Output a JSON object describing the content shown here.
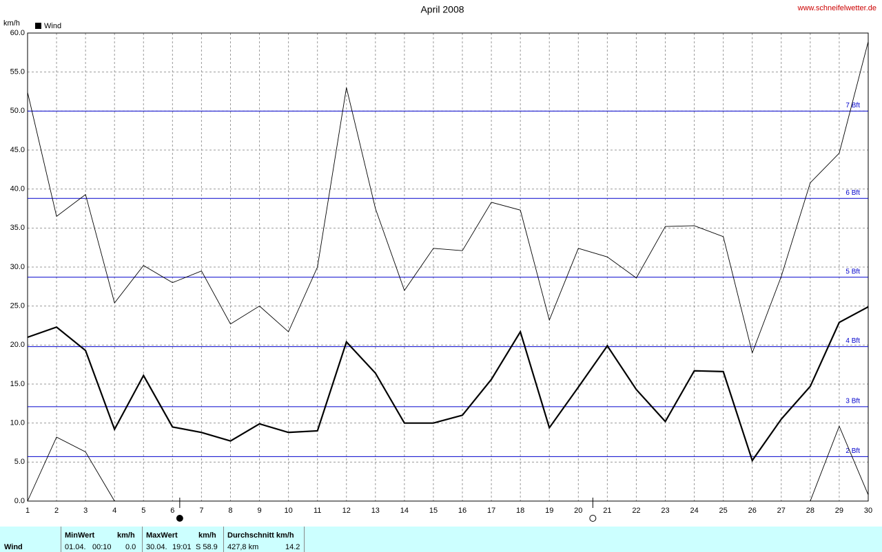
{
  "chart_data": {
    "type": "line",
    "title": "April 2008",
    "source": "www.schneifelwetter.de",
    "y_label": "km/h",
    "legend": "Wind",
    "x": [
      1,
      2,
      3,
      4,
      5,
      6,
      7,
      8,
      9,
      10,
      11,
      12,
      13,
      14,
      15,
      16,
      17,
      18,
      19,
      20,
      21,
      22,
      23,
      24,
      25,
      26,
      27,
      28,
      29,
      30
    ],
    "xlim": [
      1,
      30
    ],
    "xticks": [
      1,
      2,
      3,
      4,
      5,
      6,
      7,
      8,
      9,
      10,
      11,
      12,
      13,
      14,
      15,
      16,
      17,
      18,
      19,
      20,
      21,
      22,
      23,
      24,
      25,
      26,
      27,
      28,
      29,
      30
    ],
    "ylim": [
      0,
      60
    ],
    "yticks": [
      {
        "value": 0,
        "label": "0.0"
      },
      {
        "value": 5,
        "label": "5.0"
      },
      {
        "value": 10,
        "label": "10.0"
      },
      {
        "value": 15,
        "label": "15.0"
      },
      {
        "value": 20,
        "label": "20.0"
      },
      {
        "value": 25,
        "label": "25.0"
      },
      {
        "value": 30,
        "label": "30.0"
      },
      {
        "value": 35,
        "label": "35.0"
      },
      {
        "value": 40,
        "label": "40.0"
      },
      {
        "value": 45,
        "label": "45.0"
      },
      {
        "value": 50,
        "label": "50.0"
      },
      {
        "value": 55,
        "label": "55.0"
      },
      {
        "value": 60,
        "label": "60.0"
      }
    ],
    "grid": true,
    "series": [
      {
        "color": "#000000",
        "width": 2.2,
        "values": [
          21.0,
          22.3,
          19.3,
          9.2,
          16.1,
          9.5,
          8.8,
          7.7,
          9.9,
          8.8,
          9.0,
          20.4,
          16.4,
          10.0,
          10.0,
          11.0,
          15.6,
          21.7,
          9.4,
          14.6,
          19.9,
          14.3,
          10.2,
          16.7,
          16.6,
          5.2,
          10.5,
          14.7,
          22.9,
          24.9
        ]
      },
      {
        "color": "#000000",
        "width": 0.9,
        "values": [
          52.4,
          36.5,
          39.3,
          25.4,
          30.2,
          28.0,
          29.5,
          22.7,
          25.0,
          21.7,
          30.0,
          53.0,
          37.5,
          27.0,
          32.4,
          32.1,
          38.3,
          37.3,
          23.2,
          32.4,
          31.3,
          28.6,
          35.2,
          35.3,
          33.9,
          19.0,
          28.8,
          40.8,
          44.6,
          58.9
        ]
      },
      {
        "color": "#000000",
        "width": 0.9,
        "values": [
          0.0,
          8.2,
          6.3,
          0.0,
          0,
          0,
          0,
          0,
          0,
          0,
          0,
          0,
          0,
          0,
          0,
          0,
          0,
          0,
          0,
          0,
          0,
          0,
          0,
          0,
          0,
          0,
          0,
          0.0,
          9.6,
          0.8
        ]
      }
    ],
    "reference_lines": [
      {
        "value": 5.7,
        "label": "2 Bft"
      },
      {
        "value": 12.1,
        "label": "3 Bft"
      },
      {
        "value": 19.8,
        "label": "4 Bft"
      },
      {
        "value": 28.7,
        "label": "5 Bft"
      },
      {
        "value": 38.8,
        "label": "6 Bft"
      },
      {
        "value": 50.0,
        "label": "7 Bft"
      }
    ],
    "reference_color": "#0000cc",
    "markers": [
      {
        "x": 6.25,
        "filled": true
      },
      {
        "x": 20.5,
        "filled": false
      }
    ]
  },
  "table": {
    "row_label": "Wind",
    "min": {
      "header": "MinWert",
      "unit": "km/h",
      "date": "01.04.",
      "time": "00:10",
      "value": "0.0"
    },
    "max": {
      "header": "MaxWert",
      "unit": "km/h",
      "date": "30.04.",
      "time": "19:01",
      "value": "S 58.9"
    },
    "avg": {
      "header": "Durchschnitt km/h",
      "distance": "427,8 km",
      "value": "14.2"
    }
  }
}
